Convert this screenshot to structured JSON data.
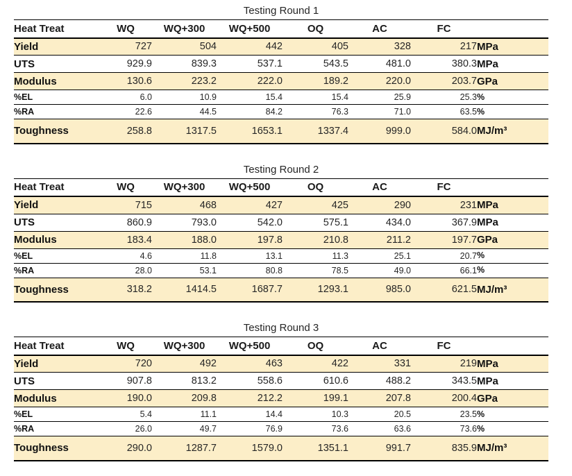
{
  "colors": {
    "band_fill": "#FCEEC8",
    "border": "#000000",
    "text": "#1F1F1F"
  },
  "tables": [
    {
      "title": "Testing Round 1",
      "columns": [
        "Heat Treat",
        "WQ",
        "WQ+300",
        "WQ+500",
        "OQ",
        "AC",
        "FC"
      ],
      "rows": [
        {
          "label": "Yield",
          "values": [
            "727",
            "504",
            "442",
            "405",
            "328",
            "217"
          ],
          "unit": "MPa"
        },
        {
          "label": "UTS",
          "values": [
            "929.9",
            "839.3",
            "537.1",
            "543.5",
            "481.0",
            "380.3"
          ],
          "unit": "MPa"
        },
        {
          "label": "Modulus",
          "values": [
            "130.6",
            "223.2",
            "222.0",
            "189.2",
            "220.0",
            "203.7"
          ],
          "unit": "GPa"
        },
        {
          "label": "%EL",
          "values": [
            "6.0",
            "10.9",
            "15.4",
            "15.4",
            "25.9",
            "25.3"
          ],
          "unit": "%"
        },
        {
          "label": "%RA",
          "values": [
            "22.6",
            "44.5",
            "84.2",
            "76.3",
            "71.0",
            "63.5"
          ],
          "unit": "%"
        },
        {
          "label": "Toughness",
          "values": [
            "258.8",
            "1317.5",
            "1653.1",
            "1337.4",
            "999.0",
            "584.0"
          ],
          "unit": "MJ/m³"
        }
      ]
    },
    {
      "title": "Testing Round 2",
      "columns": [
        "Heat Treat",
        "WQ",
        "WQ+300",
        "WQ+500",
        "OQ",
        "AC",
        "FC"
      ],
      "rows": [
        {
          "label": "Yield",
          "values": [
            "715",
            "468",
            "427",
            "425",
            "290",
            "231"
          ],
          "unit": "MPa"
        },
        {
          "label": "UTS",
          "values": [
            "860.9",
            "793.0",
            "542.0",
            "575.1",
            "434.0",
            "367.9"
          ],
          "unit": "MPa"
        },
        {
          "label": "Modulus",
          "values": [
            "183.4",
            "188.0",
            "197.8",
            "210.8",
            "211.2",
            "197.7"
          ],
          "unit": "GPa"
        },
        {
          "label": "%EL",
          "values": [
            "4.6",
            "11.8",
            "13.1",
            "11.3",
            "25.1",
            "20.7"
          ],
          "unit": "%"
        },
        {
          "label": "%RA",
          "values": [
            "28.0",
            "53.1",
            "80.8",
            "78.5",
            "49.0",
            "66.1"
          ],
          "unit": "%"
        },
        {
          "label": "Toughness",
          "values": [
            "318.2",
            "1414.5",
            "1687.7",
            "1293.1",
            "985.0",
            "621.5"
          ],
          "unit": "MJ/m³"
        }
      ]
    },
    {
      "title": "Testing Round 3",
      "columns": [
        "Heat Treat",
        "WQ",
        "WQ+300",
        "WQ+500",
        "OQ",
        "AC",
        "FC"
      ],
      "rows": [
        {
          "label": "Yield",
          "values": [
            "720",
            "492",
            "463",
            "422",
            "331",
            "219"
          ],
          "unit": "MPa"
        },
        {
          "label": "UTS",
          "values": [
            "907.8",
            "813.2",
            "558.6",
            "610.6",
            "488.2",
            "343.5"
          ],
          "unit": "MPa"
        },
        {
          "label": "Modulus",
          "values": [
            "190.0",
            "209.8",
            "212.2",
            "199.1",
            "207.8",
            "200.4"
          ],
          "unit": "GPa"
        },
        {
          "label": "%EL",
          "values": [
            "5.4",
            "11.1",
            "14.4",
            "10.3",
            "20.5",
            "23.5"
          ],
          "unit": "%"
        },
        {
          "label": "%RA",
          "values": [
            "26.0",
            "49.7",
            "76.9",
            "73.6",
            "63.6",
            "73.6"
          ],
          "unit": "%"
        },
        {
          "label": "Toughness",
          "values": [
            "290.0",
            "1287.7",
            "1579.0",
            "1351.1",
            "991.7",
            "835.9"
          ],
          "unit": "MJ/m³"
        }
      ]
    }
  ]
}
